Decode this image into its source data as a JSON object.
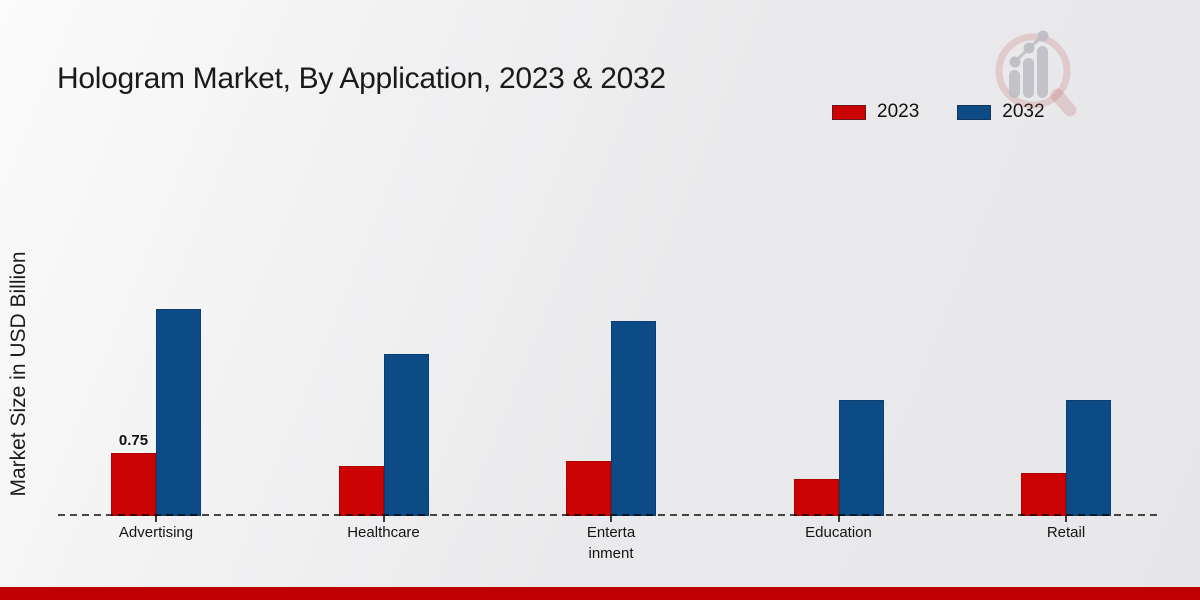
{
  "page": {
    "title": "Hologram Market, By Application, 2023 & 2032"
  },
  "ylabel": "Market Size in USD Billion",
  "legend": {
    "position": "top-right",
    "items": [
      {
        "label": "2023",
        "color": "#cc0303"
      },
      {
        "label": "2032",
        "color": "#0d4b87"
      }
    ]
  },
  "colors": {
    "bar_2023": "#cc0303",
    "bar_2032": "#0d4b87",
    "footer_bar": "#c00000",
    "axis_dash": "#3a3a3a",
    "text": "#1a1a1a"
  },
  "icons": {
    "watermark": "magnifier-growth-chart-logo"
  },
  "chart_data": {
    "type": "bar",
    "title": "Hologram Market, By Application, 2023 & 2032",
    "xlabel": "",
    "ylabel": "Market Size in USD Billion",
    "categories": [
      "Advertising",
      "Healthcare",
      "Entertainment",
      "Education",
      "Retail"
    ],
    "category_display": [
      "Advertising",
      "Healthcare",
      "Enterta\ninment",
      "Education",
      "Retail"
    ],
    "series": [
      {
        "name": "2023",
        "color": "#cc0303",
        "values": [
          0.75,
          0.6,
          0.65,
          0.44,
          0.51
        ]
      },
      {
        "name": "2032",
        "color": "#0d4b87",
        "values": [
          2.46,
          1.93,
          2.32,
          1.38,
          1.38
        ]
      }
    ],
    "annotations": [
      {
        "category": "Advertising",
        "series": "2023",
        "text": "0.75"
      }
    ],
    "grid": false,
    "axis": "baseline-dashed-only",
    "legend_position": "top-right"
  }
}
